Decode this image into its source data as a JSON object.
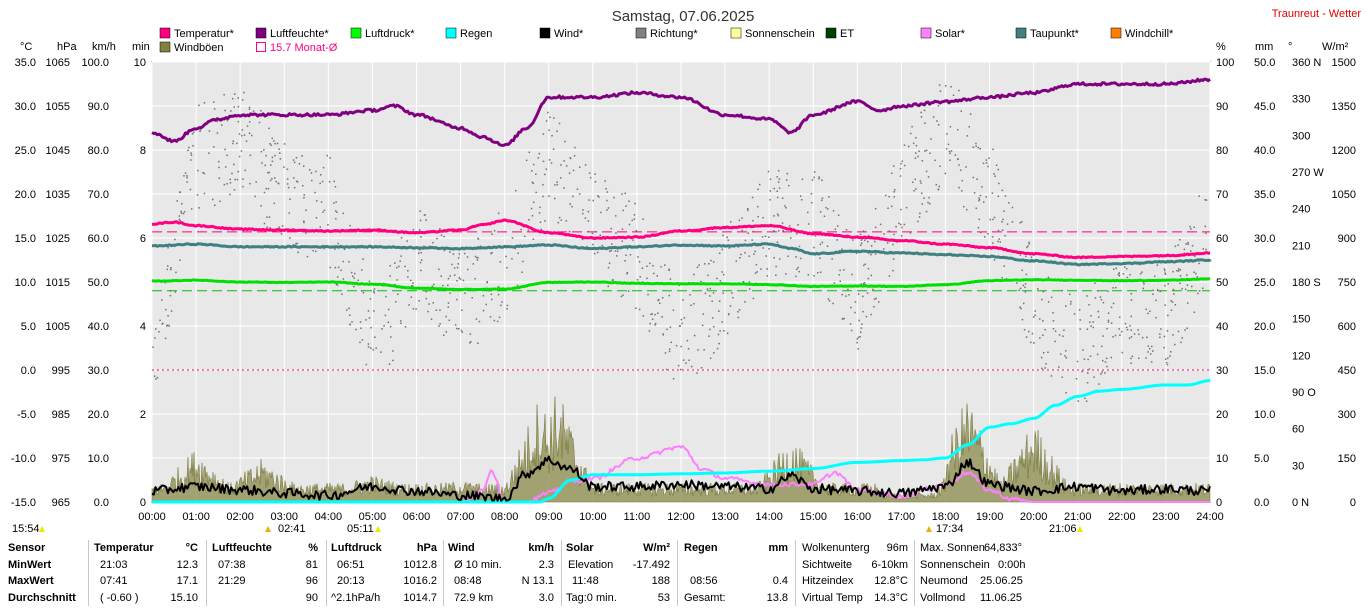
{
  "header": {
    "title": "Samstag, 07.06.2025",
    "site": "Traunreut - Wetter"
  },
  "legend": [
    {
      "label": "Temperatur*",
      "color": "#ff0080"
    },
    {
      "label": "Luftfeuchte*",
      "color": "#800080"
    },
    {
      "label": "Luftdruck*",
      "color": "#00ff00"
    },
    {
      "label": "Regen",
      "color": "#00ffff"
    },
    {
      "label": "Wind*",
      "color": "#000000"
    },
    {
      "label": "Richtung*",
      "color": "#808080"
    },
    {
      "label": "Sonnenschein",
      "color": "#ffff99"
    },
    {
      "label": "ET",
      "color": "#004000"
    },
    {
      "label": "Solar*",
      "color": "#ff80ff"
    },
    {
      "label": "Taupunkt*",
      "color": "#408080"
    },
    {
      "label": "Windchill*",
      "color": "#ff8000"
    },
    {
      "label": "Windböen",
      "color": "#808040"
    },
    {
      "label": "15.7 Monat-Ø",
      "color": "#ff0080"
    }
  ],
  "axis_units": {
    "temp": "°C",
    "press": "hPa",
    "wind": "km/h",
    "min": "min",
    "hum": "%",
    "rain": "mm",
    "dir": "°",
    "solar": "W/m²"
  },
  "axes": {
    "temp": [
      "35.0",
      "30.0",
      "25.0",
      "20.0",
      "15.0",
      "10.0",
      "5.0",
      "0.0",
      "-5.0",
      "-10.0",
      "-15.0"
    ],
    "press": [
      "1065",
      "1055",
      "1045",
      "1035",
      "1025",
      "1015",
      "1005",
      "995",
      "985",
      "975",
      "965"
    ],
    "wind": [
      "100.0",
      "90.0",
      "80.0",
      "70.0",
      "60.0",
      "50.0",
      "40.0",
      "30.0",
      "20.0",
      "10.0",
      "0.0"
    ],
    "min": [
      "10",
      "",
      "8",
      "",
      "6",
      "",
      "4",
      "",
      "2",
      "",
      "0"
    ],
    "hum": [
      "100",
      "90",
      "80",
      "70",
      "60",
      "50",
      "40",
      "30",
      "20",
      "10",
      "0"
    ],
    "rain": [
      "50.0",
      "45.0",
      "40.0",
      "35.0",
      "30.0",
      "25.0",
      "20.0",
      "15.0",
      "10.0",
      "5.0",
      "0.0"
    ],
    "dir": [
      "360 N",
      "330",
      "300",
      "270 W",
      "240",
      "210",
      "180 S",
      "150",
      "120",
      "90 O",
      "60",
      "30",
      "0 N"
    ],
    "solar": [
      "1500",
      "1350",
      "1200",
      "1050",
      "900",
      "750",
      "600",
      "450",
      "300",
      "150",
      "0"
    ],
    "time": [
      "00:00",
      "01:00",
      "02:00",
      "03:00",
      "04:00",
      "05:00",
      "06:00",
      "07:00",
      "08:00",
      "09:00",
      "10:00",
      "11:00",
      "12:00",
      "13:00",
      "14:00",
      "15:00",
      "16:00",
      "17:00",
      "18:00",
      "19:00",
      "20:00",
      "21:00",
      "22:00",
      "23:00",
      "24:00"
    ]
  },
  "markers": {
    "bottom_left": "15:54",
    "sunrise": "02:41",
    "moon1": "05:11",
    "sunset": "17:34",
    "moon2": "21:06"
  },
  "stats": {
    "labels": {
      "sensor": "Sensor",
      "min": "MinWert",
      "max": "MaxWert",
      "avg": "Durchschnitt"
    },
    "temperature": {
      "title": "Temperatur",
      "unit": "°C",
      "min_time": "21:03",
      "min": "12.3",
      "max_time": "07:41",
      "max": "17.1",
      "avg_note": "( -0.60 )",
      "avg": "15.10"
    },
    "humidity": {
      "title": "Luftfeuchte",
      "unit": "%",
      "min_time": "07:38",
      "min": "81",
      "max_time": "21:29",
      "max": "96",
      "avg": "90"
    },
    "pressure": {
      "title": "Luftdruck",
      "unit": "hPa",
      "min_time": "06:51",
      "min": "1012.8",
      "max_time": "20:13",
      "max": "1016.2",
      "avg_note": "^2.1hPa/h",
      "avg": "1014.7"
    },
    "wind": {
      "title": "Wind",
      "unit": "km/h",
      "min_label": "Ø 10 min.",
      "min": "2.3",
      "max_time": "08:48",
      "max": "N 13.1",
      "avg_note": "72.9 km",
      "avg": "3.0"
    },
    "solar": {
      "title": "Solar",
      "unit": "W/m²",
      "min_label": "Elevation",
      "min": "-17.492",
      "max_time": "11:48",
      "max": "188",
      "avg_note": "Tag:0 min.",
      "avg": "53"
    },
    "rain": {
      "title": "Regen",
      "unit": "mm",
      "max_time": "08:56",
      "max": "0.4",
      "avg_note": "Gesamt:",
      "avg": "13.8"
    },
    "misc1": {
      "r1l": "Wolkenunterg",
      "r1v": "96m",
      "r2l": "Sichtweite",
      "r2v": "6-10km",
      "r3l": "Hitzeindex",
      "r3v": "12.8°C",
      "r4l": "Virtual Temp",
      "r4v": "14.3°C"
    },
    "misc2": {
      "r1l": "Max. Sonnen",
      "r1v": "64,833°",
      "r2l": "Sonnenschein",
      "r2v": "0:00h",
      "r3l": "Neumond",
      "r3v": "25.06.25",
      "r4l": "Vollmond",
      "r4v": "11.06.25"
    }
  },
  "chart_data": {
    "type": "line",
    "title": "Samstag, 07.06.2025",
    "x_unit": "hours",
    "xlim": [
      0,
      24
    ],
    "ylim_temp": [
      -15,
      35
    ],
    "grid": true,
    "reference_lines": {
      "temp_month_avg": 15.7,
      "pressure_ref": 1013.0,
      "temp_zero": 0
    },
    "series": [
      {
        "name": "Luftfeuchte*",
        "axis": "hum",
        "x": [
          0,
          0.5,
          1,
          1.5,
          2,
          3,
          4,
          5,
          5.5,
          6,
          7,
          7.5,
          8,
          8.5,
          9,
          10,
          11,
          12,
          13,
          14,
          14.5,
          15,
          16,
          16.5,
          17,
          18,
          19,
          20,
          21,
          22,
          23,
          24
        ],
        "y": [
          84,
          82,
          85,
          87,
          88,
          88,
          88,
          89,
          90,
          88,
          85,
          83,
          81,
          85,
          92,
          92,
          93,
          92,
          88,
          87,
          84,
          88,
          91,
          89,
          90,
          91,
          92,
          93,
          95,
          95,
          95,
          96
        ]
      },
      {
        "name": "Temperatur*",
        "axis": "temp",
        "x": [
          0,
          0.5,
          1,
          2,
          3,
          4,
          5,
          6,
          7,
          7.5,
          8,
          9,
          10,
          11,
          12,
          13,
          14,
          15,
          16,
          17,
          18,
          19,
          20,
          21,
          22,
          23,
          24
        ],
        "y": [
          16.6,
          16.8,
          16.4,
          16.0,
          15.9,
          15.8,
          15.9,
          15.6,
          15.9,
          16.5,
          17.0,
          15.6,
          15.0,
          15.1,
          15.8,
          16.2,
          16.4,
          15.5,
          15.1,
          14.7,
          14.3,
          13.9,
          13.2,
          12.8,
          12.9,
          13.0,
          13.3
        ]
      },
      {
        "name": "Taupunkt*",
        "axis": "temp",
        "x": [
          0,
          1,
          2,
          3,
          4,
          5,
          6,
          7,
          8,
          9,
          10,
          11,
          12,
          13,
          14,
          14.5,
          15,
          16,
          17,
          18,
          19,
          20,
          21,
          22,
          23,
          24
        ],
        "y": [
          14.1,
          14.3,
          14.0,
          14.0,
          14.0,
          14.0,
          13.9,
          13.8,
          14.0,
          14.2,
          13.8,
          14.0,
          14.2,
          14.1,
          14.3,
          13.8,
          13.2,
          13.5,
          13.3,
          13.1,
          12.9,
          12.4,
          12.0,
          12.1,
          12.3,
          12.5
        ]
      },
      {
        "name": "Luftdruck*",
        "axis": "press",
        "x": [
          0,
          1,
          2,
          3,
          4,
          5,
          6,
          7,
          8,
          9,
          10,
          11,
          12,
          13,
          14,
          15,
          16,
          17,
          18,
          19,
          20,
          21,
          22,
          23,
          24
        ],
        "y": [
          1015.2,
          1015.4,
          1015.0,
          1014.9,
          1015.0,
          1014.5,
          1013.6,
          1013.3,
          1013.4,
          1014.9,
          1015.0,
          1014.7,
          1014.6,
          1014.6,
          1014.4,
          1014.0,
          1014.1,
          1014.0,
          1014.4,
          1015.3,
          1015.5,
          1015.4,
          1015.3,
          1015.4,
          1015.7
        ]
      },
      {
        "name": "Regen",
        "axis": "rain",
        "x": [
          0,
          8.8,
          9,
          9.5,
          10,
          11,
          12,
          13,
          14,
          15,
          16,
          17,
          17.5,
          18,
          18.5,
          19,
          19.5,
          20,
          20.5,
          21,
          21.5,
          22,
          23,
          23.5,
          24
        ],
        "y": [
          0,
          0,
          0.4,
          2.5,
          3.1,
          3.1,
          3.2,
          3.3,
          3.5,
          3.8,
          4.5,
          4.7,
          4.8,
          5.0,
          6.5,
          8.5,
          8.9,
          9.5,
          11.0,
          12.0,
          12.6,
          12.8,
          13.3,
          13.3,
          13.8
        ]
      },
      {
        "name": "Wind*",
        "axis": "wind",
        "x": [
          0,
          1,
          2,
          3,
          4,
          5,
          6,
          7,
          8,
          8.5,
          9,
          9.5,
          10,
          11,
          12,
          13,
          14,
          14.5,
          15,
          16,
          17,
          18,
          18.5,
          19,
          20,
          21,
          22,
          23,
          24
        ],
        "y": [
          2.5,
          3.5,
          2.8,
          2.0,
          1.5,
          3.5,
          2.5,
          1.5,
          0.8,
          6.5,
          9.5,
          7.5,
          3.5,
          3.5,
          4.0,
          3.5,
          3.0,
          6.0,
          3.0,
          2.5,
          2.0,
          3.5,
          9.0,
          4.0,
          2.5,
          3.5,
          2.5,
          3.0,
          2.5
        ]
      },
      {
        "name": "Solar*",
        "axis": "solar",
        "x": [
          0,
          7,
          7.5,
          7.7,
          8,
          8.5,
          9,
          9.5,
          10,
          11,
          12,
          12.5,
          13,
          14,
          15,
          15.5,
          16,
          17,
          18,
          18.5,
          19,
          19.5,
          20,
          21,
          24
        ],
        "y": [
          0,
          0,
          40,
          110,
          0,
          0,
          30,
          70,
          80,
          150,
          188,
          110,
          80,
          60,
          60,
          100,
          40,
          20,
          60,
          100,
          40,
          10,
          0,
          0,
          0
        ]
      }
    ],
    "gust_series": {
      "name": "Windböen",
      "axis": "wind",
      "peaks_hours": [
        1,
        2.5,
        5,
        7,
        8.8,
        9.2,
        14.5,
        18.5,
        20
      ],
      "peak_values": [
        10,
        8,
        5,
        4,
        20,
        21,
        12,
        20,
        15
      ]
    },
    "direction_scatter": {
      "name": "Richtung*",
      "axis": "dir",
      "note": "scattered points"
    }
  }
}
